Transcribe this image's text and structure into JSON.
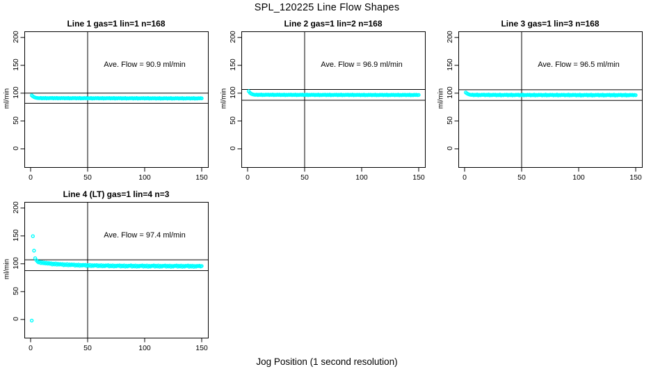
{
  "chart_data": {
    "type": "scatter",
    "title": "SPL_120225  Line Flow Shapes",
    "xlabel": "Jog Position (1 second resolution)",
    "ylabel": "ml/min",
    "x_ticks": [
      0,
      50,
      100,
      150
    ],
    "y_ticks": [
      0,
      50,
      100,
      150,
      200
    ],
    "xlim": [
      -5,
      157
    ],
    "ylim": [
      -34,
      211
    ],
    "grid": false,
    "legend": "none",
    "point_color": "#00ffff",
    "line_color": "#000000",
    "x": [
      1,
      2,
      3,
      4,
      5,
      6,
      7,
      8,
      9,
      10,
      11,
      12,
      13,
      14,
      15,
      16,
      17,
      18,
      19,
      20,
      21,
      22,
      23,
      24,
      25,
      26,
      27,
      28,
      29,
      30,
      31,
      32,
      33,
      34,
      35,
      36,
      37,
      38,
      39,
      40,
      41,
      42,
      43,
      44,
      45,
      46,
      47,
      48,
      49,
      50,
      51,
      52,
      53,
      54,
      55,
      56,
      57,
      58,
      59,
      60,
      61,
      62,
      63,
      64,
      65,
      66,
      67,
      68,
      69,
      70,
      71,
      72,
      73,
      74,
      75,
      76,
      77,
      78,
      79,
      80,
      81,
      82,
      83,
      84,
      85,
      86,
      87,
      88,
      89,
      90,
      91,
      92,
      93,
      94,
      95,
      96,
      97,
      98,
      99,
      100,
      101,
      102,
      103,
      104,
      105,
      106,
      107,
      108,
      109,
      110,
      111,
      112,
      113,
      114,
      115,
      116,
      117,
      118,
      119,
      120,
      121,
      122,
      123,
      124,
      125,
      126,
      127,
      128,
      129,
      130,
      131,
      132,
      133,
      134,
      135,
      136,
      137,
      138,
      139,
      140,
      141,
      142,
      143,
      144,
      145,
      146,
      147,
      148,
      149,
      150
    ],
    "panels": [
      {
        "title": "Line 1 gas=1 lin=1 n=168",
        "ave_label": "Ave. Flow =  90.9  ml/min",
        "ave_flow": 90.9,
        "n": 168,
        "vline_x": 50,
        "hlines": [
          100.0,
          81.8
        ],
        "y": [
          96.0,
          94.3,
          93.0,
          92.2,
          91.6,
          91.3,
          91.1,
          91.0,
          91.5,
          90.6,
          91.3,
          90.8,
          91.6,
          90.5,
          91.2,
          90.7,
          91.4,
          91.0,
          91.5,
          90.6,
          91.3,
          90.8,
          91.6,
          90.5,
          91.2,
          90.7,
          91.4,
          90.9,
          91.4,
          90.5,
          91.2,
          90.7,
          91.5,
          90.4,
          91.1,
          90.6,
          91.3,
          90.9,
          91.4,
          90.5,
          91.2,
          90.7,
          91.5,
          90.4,
          91.1,
          90.6,
          91.3,
          90.8,
          91.3,
          90.4,
          91.1,
          90.6,
          91.4,
          90.3,
          91.0,
          90.5,
          91.2,
          90.8,
          91.3,
          90.4,
          91.1,
          90.6,
          91.4,
          90.3,
          91.0,
          90.5,
          91.2,
          90.8,
          91.3,
          90.4,
          91.1,
          90.6,
          91.4,
          90.3,
          91.0,
          90.5,
          91.2,
          90.7,
          91.2,
          90.3,
          91.0,
          90.5,
          91.3,
          90.2,
          90.9,
          90.4,
          91.1,
          90.7,
          91.2,
          90.3,
          91.0,
          90.5,
          91.3,
          90.2,
          90.9,
          90.4,
          91.1,
          90.7,
          91.2,
          90.3,
          91.0,
          90.5,
          91.3,
          90.2,
          90.9,
          90.4,
          91.1,
          90.6,
          91.1,
          90.2,
          90.9,
          90.4,
          91.2,
          90.1,
          90.8,
          90.3,
          91.0,
          90.6,
          91.1,
          90.2,
          90.9,
          90.4,
          91.2,
          90.1,
          90.8,
          90.3,
          91.0,
          90.6,
          91.1,
          90.2,
          90.9,
          90.4,
          91.2,
          90.1,
          90.8,
          90.3,
          91.0,
          90.6,
          91.1,
          90.2,
          90.9,
          90.4,
          91.2,
          90.1,
          90.8,
          90.3,
          91.0,
          90.6,
          91.0,
          90.7
        ]
      },
      {
        "title": "Line 2 gas=1 lin=2 n=168",
        "ave_label": "Ave. Flow =  96.9  ml/min",
        "ave_flow": 96.9,
        "n": 168,
        "vline_x": 50,
        "hlines": [
          106.6,
          87.2
        ],
        "y": [
          103.5,
          100.8,
          99.2,
          98.2,
          97.6,
          97.2,
          97.0,
          97.5,
          96.6,
          97.3,
          96.8,
          97.6,
          96.5,
          97.2,
          96.7,
          97.4,
          97.0,
          97.5,
          96.6,
          97.3,
          96.8,
          97.6,
          96.5,
          97.2,
          96.7,
          97.4,
          96.9,
          97.4,
          96.5,
          97.2,
          96.7,
          97.5,
          96.4,
          97.1,
          96.6,
          97.3,
          96.9,
          97.4,
          96.5,
          97.2,
          96.7,
          97.5,
          96.4,
          97.1,
          96.6,
          97.3,
          96.9,
          97.4,
          96.5,
          97.2,
          96.7,
          97.5,
          96.4,
          97.1,
          96.6,
          97.3,
          96.8,
          97.3,
          96.4,
          97.1,
          96.6,
          97.4,
          96.3,
          97.0,
          96.5,
          97.2,
          96.8,
          97.3,
          96.4,
          97.1,
          96.6,
          97.4,
          96.3,
          97.0,
          96.5,
          97.2,
          96.8,
          97.3,
          96.4,
          97.1,
          96.6,
          97.4,
          96.3,
          97.0,
          96.5,
          97.2,
          96.8,
          97.3,
          96.4,
          97.1,
          96.6,
          97.4,
          96.3,
          97.0,
          96.5,
          97.2,
          96.7,
          97.2,
          96.3,
          97.0,
          96.5,
          97.3,
          96.2,
          96.9,
          96.4,
          97.1,
          96.7,
          97.2,
          96.3,
          97.0,
          96.5,
          97.3,
          96.2,
          96.9,
          96.4,
          97.1,
          96.7,
          97.2,
          96.3,
          97.0,
          96.5,
          97.3,
          96.2,
          96.9,
          96.4,
          97.1,
          96.7,
          97.2,
          96.3,
          97.0,
          96.5,
          97.3,
          96.2,
          96.9,
          96.4,
          97.1,
          96.7,
          97.2,
          96.3,
          97.0,
          96.5,
          97.3,
          96.2,
          96.9,
          96.4,
          97.1,
          96.7,
          97.1,
          96.5,
          96.9
        ]
      },
      {
        "title": "Line 3 gas=1 lin=3 n=168",
        "ave_label": "Ave. Flow =  96.5  ml/min",
        "ave_flow": 96.5,
        "n": 168,
        "vline_x": 50,
        "hlines": [
          106.2,
          86.9
        ],
        "y": [
          101.2,
          99.6,
          98.5,
          97.7,
          97.2,
          96.8,
          97.4,
          96.2,
          97.1,
          96.5,
          97.6,
          96.1,
          97.0,
          96.4,
          97.3,
          96.8,
          97.4,
          96.2,
          97.1,
          96.5,
          97.6,
          96.1,
          97.0,
          96.4,
          97.3,
          96.7,
          97.3,
          96.1,
          97.0,
          96.4,
          97.5,
          96.0,
          96.9,
          96.3,
          97.2,
          96.7,
          97.3,
          96.1,
          97.0,
          96.4,
          97.5,
          96.0,
          96.9,
          96.3,
          97.2,
          96.7,
          97.3,
          96.1,
          97.0,
          96.4,
          97.5,
          96.0,
          96.9,
          96.3,
          97.2,
          96.6,
          97.2,
          96.0,
          96.9,
          96.3,
          97.4,
          95.9,
          96.8,
          96.2,
          97.1,
          96.6,
          97.2,
          96.0,
          96.9,
          96.3,
          97.4,
          95.9,
          96.8,
          96.2,
          97.1,
          96.6,
          97.2,
          96.0,
          96.9,
          96.3,
          97.4,
          95.9,
          96.8,
          96.2,
          97.1,
          96.6,
          97.2,
          96.0,
          96.9,
          96.3,
          97.4,
          95.9,
          96.8,
          96.2,
          97.1,
          96.5,
          97.1,
          95.9,
          96.8,
          96.2,
          97.3,
          95.8,
          96.7,
          96.1,
          97.0,
          96.5,
          97.1,
          95.9,
          96.8,
          96.2,
          97.3,
          95.8,
          96.7,
          96.1,
          97.0,
          96.5,
          97.1,
          95.9,
          96.8,
          96.2,
          97.3,
          95.8,
          96.7,
          96.1,
          97.0,
          96.5,
          97.1,
          95.9,
          96.8,
          96.2,
          97.3,
          95.8,
          96.7,
          96.1,
          97.0,
          96.5,
          97.1,
          95.9,
          96.8,
          96.2,
          97.3,
          95.8,
          96.7,
          96.1,
          97.0,
          96.5,
          97.0,
          96.2,
          96.8,
          96.4
        ]
      },
      {
        "title": "Line 4 (LT) gas=1 lin=4 n=3",
        "ave_label": "Ave. Flow =  97.4  ml/min",
        "ave_flow": 97.4,
        "n": 3,
        "vline_x": 50,
        "hlines": [
          107.1,
          87.7
        ],
        "y": [
          -2.0,
          149.5,
          123.5,
          110.0,
          106.5,
          104.0,
          102.5,
          103.4,
          101.2,
          102.8,
          100.9,
          102.2,
          100.4,
          101.8,
          100.1,
          101.4,
          99.8,
          100.9,
          98.7,
          100.3,
          98.9,
          100.6,
          98.4,
          99.9,
          98.6,
          99.7,
          98.6,
          99.5,
          97.4,
          99.0,
          97.7,
          99.3,
          97.2,
          98.8,
          97.5,
          98.9,
          97.8,
          98.7,
          96.6,
          98.2,
          96.9,
          98.5,
          96.4,
          98.0,
          96.7,
          98.1,
          97.2,
          98.1,
          96.0,
          97.6,
          96.3,
          97.9,
          95.8,
          97.4,
          96.1,
          97.5,
          96.8,
          97.7,
          95.6,
          97.2,
          95.9,
          97.5,
          95.4,
          97.0,
          95.7,
          97.1,
          96.5,
          97.4,
          95.3,
          96.9,
          95.6,
          97.2,
          95.1,
          96.7,
          95.4,
          96.8,
          96.3,
          97.2,
          95.1,
          96.7,
          95.4,
          97.0,
          94.9,
          96.5,
          95.2,
          96.6,
          96.2,
          97.1,
          95.0,
          96.6,
          95.3,
          96.9,
          94.8,
          96.4,
          95.1,
          96.5,
          96.1,
          97.0,
          94.9,
          96.5,
          95.2,
          96.8,
          94.7,
          96.3,
          95.0,
          96.4,
          96.1,
          97.0,
          94.9,
          96.5,
          95.2,
          96.8,
          94.7,
          96.3,
          95.0,
          96.4,
          96.0,
          96.9,
          94.8,
          96.4,
          95.1,
          96.7,
          94.6,
          96.2,
          94.9,
          96.3,
          96.0,
          96.9,
          94.8,
          96.4,
          95.1,
          96.7,
          94.6,
          96.2,
          94.9,
          96.3,
          95.9,
          96.8,
          94.7,
          96.3,
          95.0,
          96.6,
          94.5,
          96.1,
          94.8,
          96.2,
          95.8,
          96.5,
          95.1,
          95.9
        ]
      }
    ]
  }
}
